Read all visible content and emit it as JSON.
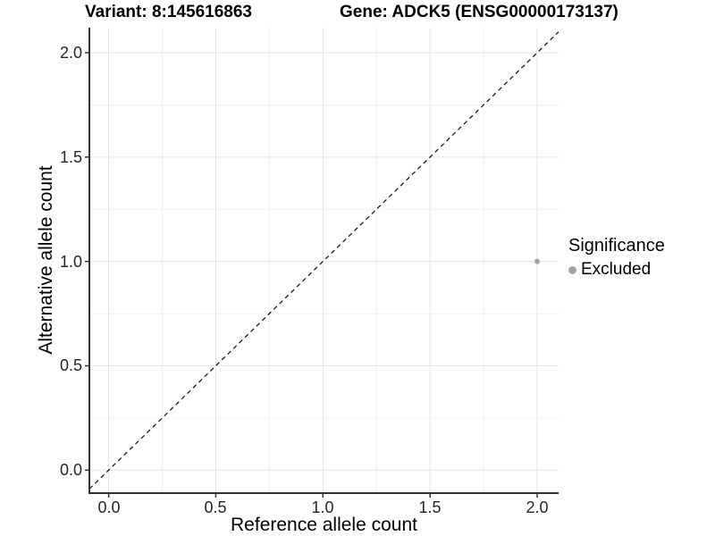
{
  "chart_data": {
    "type": "scatter",
    "title_left": "Variant: 8:145616863",
    "title_right": "Gene: ADCK5 (ENSG00000173137)",
    "xlabel": "Reference allele count",
    "ylabel": "Alternative allele count",
    "xlim": [
      -0.09,
      2.1
    ],
    "ylim": [
      -0.11,
      2.12
    ],
    "x_ticks": [
      0.0,
      0.5,
      1.0,
      1.5,
      2.0
    ],
    "x_tick_labels": [
      "0.0",
      "0.5",
      "1.0",
      "1.5",
      "2.0"
    ],
    "y_ticks": [
      0.0,
      0.5,
      1.0,
      1.5,
      2.0
    ],
    "y_tick_labels": [
      "0.0",
      "0.5",
      "1.0",
      "1.5",
      "2.0"
    ],
    "x_minor_ticks": [
      0.25,
      0.75,
      1.25,
      1.75
    ],
    "y_minor_ticks": [
      0.25,
      0.75,
      1.25,
      1.75
    ],
    "grid": true,
    "identity_line": {
      "equation": "y = x",
      "style": "dashed",
      "color": "#1a1a1a"
    },
    "series": [
      {
        "name": "Excluded",
        "color": "#a3a3a3",
        "points": [
          [
            2.0,
            1.0
          ]
        ]
      }
    ],
    "legend": {
      "title": "Significance",
      "position": "right",
      "items": [
        {
          "label": "Excluded",
          "color": "#a3a3a3"
        }
      ]
    }
  },
  "colors": {
    "background": "#ffffff",
    "major_grid": "#e3e3e3",
    "minor_grid": "#f0f0f0",
    "axis_line": "#333333",
    "tick_mark": "#333333",
    "tick_label": "#262626",
    "point": "#a3a3a3"
  }
}
